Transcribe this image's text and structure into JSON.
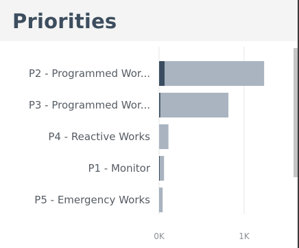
{
  "title": "Priorities",
  "chart_data": {
    "type": "bar",
    "orientation": "horizontal",
    "stacked": true,
    "categories": [
      "P2 - Programmed Wor...",
      "P3 - Programmed Wor...",
      "P4 - Reactive Works",
      "P1 - Monitor",
      "P5 - Emergency Works"
    ],
    "series": [
      {
        "values": [
          65,
          15,
          0,
          8,
          2
        ],
        "color": "#3a4d60"
      },
      {
        "values": [
          1170,
          800,
          110,
          50,
          40
        ],
        "color": "#a9b4c0"
      }
    ],
    "x_ticks": [
      0,
      1000
    ],
    "x_tick_labels": [
      "0K",
      "1K"
    ],
    "xlim": [
      0,
      1600
    ],
    "grid": true,
    "legend": "none"
  }
}
